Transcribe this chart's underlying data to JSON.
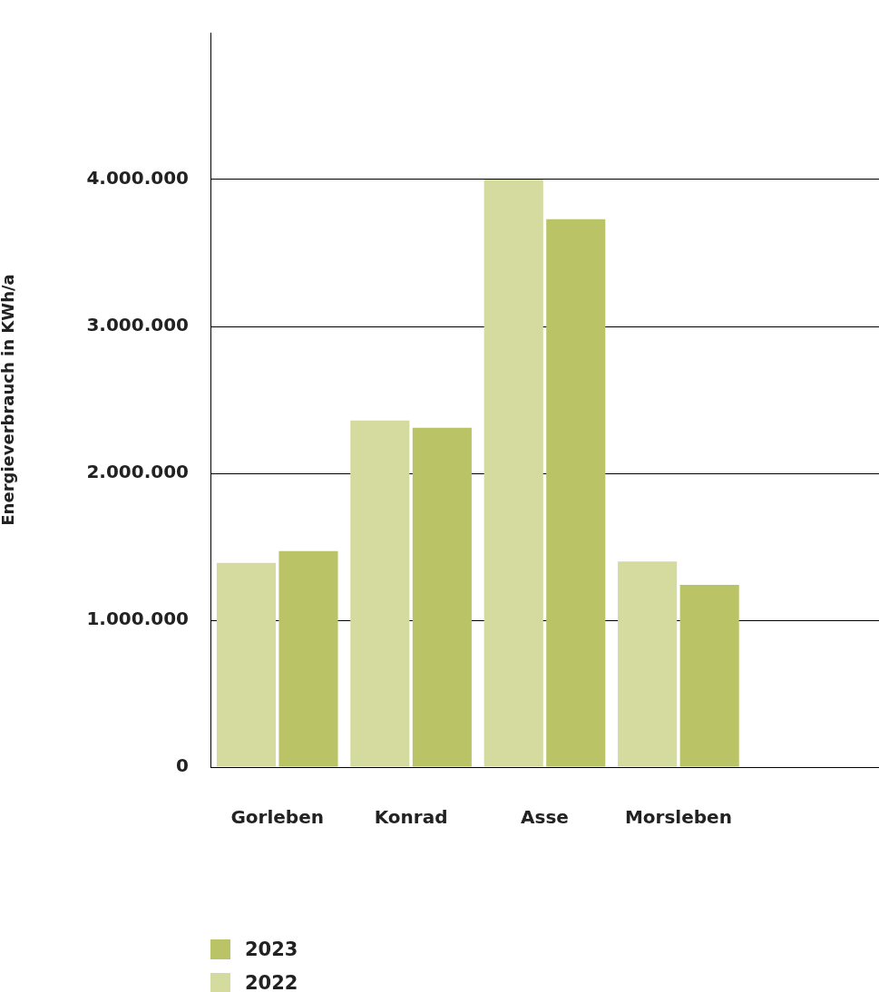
{
  "chart_data": {
    "type": "bar",
    "ylabel": "Energieverbrauch in KWh/a",
    "categories": [
      "Gorleben",
      "Konrad",
      "Asse",
      "Morsleben",
      null
    ],
    "series": [
      {
        "name": "2022",
        "color": "#d5da9e",
        "values": [
          1390000,
          2360000,
          4000000,
          1400000,
          null
        ]
      },
      {
        "name": "2023",
        "color": "#bac466",
        "values": [
          1470000,
          2310000,
          3730000,
          1240000,
          null
        ]
      }
    ],
    "ylim": [
      0,
      5000000
    ],
    "yticks": [
      {
        "value": 0,
        "label": "0"
      },
      {
        "value": 1000000,
        "label": "1.000.000"
      },
      {
        "value": 2000000,
        "label": "2.000.000"
      },
      {
        "value": 3000000,
        "label": "3.000.000"
      },
      {
        "value": 4000000,
        "label": "4.000.000"
      }
    ],
    "grid": "y",
    "legend": "bottom"
  }
}
